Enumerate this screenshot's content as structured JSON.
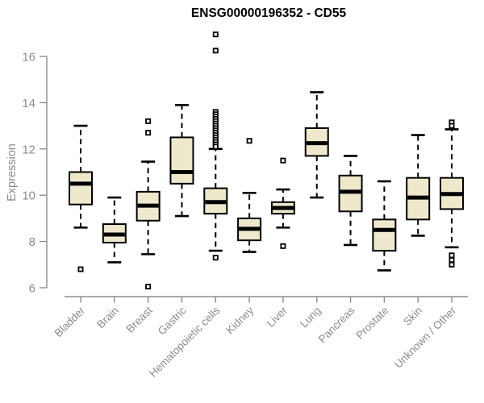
{
  "chart_data": {
    "type": "boxplot",
    "title": "ENSG00000196352 - CD55",
    "ylabel": "Expression",
    "xlabel": "",
    "yticks": [
      6,
      8,
      10,
      12,
      14,
      16
    ],
    "ylim": [
      6,
      17.1
    ],
    "grid": false,
    "legend": "none",
    "colors": {
      "box_fill": "#EEE8CD",
      "box_stroke": "#000000",
      "median_stroke": "#000000",
      "whisker_stroke": "#000000",
      "axis_color": "#8c8c8c",
      "title_color": "#000000",
      "background": "#ffffff"
    },
    "categories": [
      "Bladder",
      "Brain",
      "Breast",
      "Gastric",
      "Hematopoietic cells",
      "Kidney",
      "Liver",
      "Lung",
      "Pancreas",
      "Prostate",
      "Skin",
      "Unknown / Other"
    ],
    "series": [
      {
        "category": "Bladder",
        "whisker_low": 8.6,
        "q1": 9.6,
        "median": 10.5,
        "q3": 11.0,
        "whisker_high": 13.0,
        "outliers": [
          6.8
        ]
      },
      {
        "category": "Brain",
        "whisker_low": 7.1,
        "q1": 7.95,
        "median": 8.3,
        "q3": 8.75,
        "whisker_high": 9.9,
        "outliers": []
      },
      {
        "category": "Breast",
        "whisker_low": 7.45,
        "q1": 8.9,
        "median": 9.55,
        "q3": 10.15,
        "whisker_high": 11.45,
        "outliers": [
          13.2,
          12.7,
          6.05
        ]
      },
      {
        "category": "Gastric",
        "whisker_low": 9.1,
        "q1": 10.5,
        "median": 11.0,
        "q3": 12.5,
        "whisker_high": 13.9,
        "outliers": []
      },
      {
        "category": "Hematopoietic cells",
        "whisker_low": 7.6,
        "q1": 9.2,
        "median": 9.7,
        "q3": 10.3,
        "whisker_high": 12.0,
        "outliers": [
          16.95,
          16.25,
          13.6,
          13.5,
          13.4,
          13.3,
          13.2,
          13.1,
          13.0,
          12.9,
          12.8,
          12.7,
          12.6,
          12.5,
          12.4,
          12.3,
          12.2,
          12.1,
          7.3
        ]
      },
      {
        "category": "Kidney",
        "whisker_low": 7.55,
        "q1": 8.05,
        "median": 8.55,
        "q3": 9.0,
        "whisker_high": 10.1,
        "outliers": [
          12.35
        ]
      },
      {
        "category": "Liver",
        "whisker_low": 8.6,
        "q1": 9.2,
        "median": 9.45,
        "q3": 9.7,
        "whisker_high": 10.25,
        "outliers": [
          11.5,
          7.8
        ]
      },
      {
        "category": "Lung",
        "whisker_low": 9.9,
        "q1": 11.7,
        "median": 12.25,
        "q3": 12.9,
        "whisker_high": 14.45,
        "outliers": []
      },
      {
        "category": "Pancreas",
        "whisker_low": 7.85,
        "q1": 9.3,
        "median": 10.15,
        "q3": 10.85,
        "whisker_high": 11.7,
        "outliers": []
      },
      {
        "category": "Prostate",
        "whisker_low": 6.75,
        "q1": 7.6,
        "median": 8.5,
        "q3": 8.95,
        "whisker_high": 10.6,
        "outliers": []
      },
      {
        "category": "Skin",
        "whisker_low": 8.25,
        "q1": 8.95,
        "median": 9.9,
        "q3": 10.75,
        "whisker_high": 12.6,
        "outliers": []
      },
      {
        "category": "Unknown / Other",
        "whisker_low": 7.75,
        "q1": 9.4,
        "median": 10.05,
        "q3": 10.75,
        "whisker_high": 12.85,
        "outliers": [
          13.15,
          13.0,
          7.4,
          7.2,
          7.0
        ]
      }
    ]
  }
}
